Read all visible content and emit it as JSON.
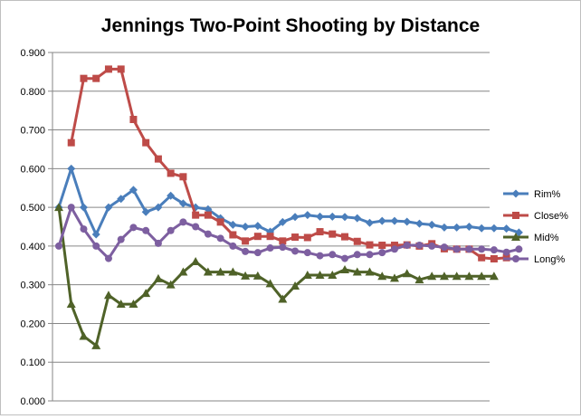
{
  "chart_data": {
    "type": "line",
    "title": "Jennings Two-Point Shooting by Distance",
    "xlabel": "",
    "ylabel": "",
    "ylim": [
      0,
      0.9
    ],
    "yticks": [
      "0.000",
      "0.100",
      "0.200",
      "0.300",
      "0.400",
      "0.500",
      "0.600",
      "0.700",
      "0.800",
      "0.900"
    ],
    "grid": true,
    "legend_position": "right",
    "series": [
      {
        "name": "Rim%",
        "color": "#4a7ebb",
        "marker": "diamond",
        "values": [
          0.5,
          0.6,
          0.5,
          0.43,
          0.5,
          0.522,
          0.545,
          0.488,
          0.5,
          0.53,
          0.51,
          0.5,
          0.495,
          0.472,
          0.455,
          0.45,
          0.452,
          0.437,
          0.462,
          0.475,
          0.48,
          0.476,
          0.476,
          0.475,
          0.472,
          0.46,
          0.465,
          0.465,
          0.463,
          0.458,
          0.455,
          0.448,
          0.448,
          0.45,
          0.446,
          0.446,
          0.445,
          0.435
        ]
      },
      {
        "name": "Close%",
        "color": "#be4b48",
        "marker": "square",
        "values": [
          null,
          0.667,
          0.833,
          0.833,
          0.857,
          0.857,
          0.727,
          0.667,
          0.625,
          0.588,
          0.579,
          0.48,
          0.48,
          0.462,
          0.429,
          0.413,
          0.425,
          0.425,
          0.413,
          0.423,
          0.422,
          0.437,
          0.431,
          0.424,
          0.412,
          0.403,
          0.402,
          0.402,
          0.403,
          0.4,
          0.406,
          0.393,
          0.392,
          0.392,
          0.37,
          0.367,
          0.37
        ]
      },
      {
        "name": "Mid%",
        "color": "#4f6228",
        "marker": "triangle",
        "values": [
          0.5,
          0.25,
          0.167,
          0.143,
          0.273,
          0.25,
          0.25,
          0.278,
          0.316,
          0.3,
          0.333,
          0.36,
          0.333,
          0.333,
          0.333,
          0.323,
          0.323,
          0.303,
          0.263,
          0.297,
          0.325,
          0.325,
          0.325,
          0.339,
          0.333,
          0.333,
          0.322,
          0.317,
          0.329,
          0.313,
          0.322,
          0.322,
          0.322,
          0.322,
          0.322,
          0.322
        ]
      },
      {
        "name": "Long%",
        "color": "#7d5fa0",
        "marker": "circle",
        "values": [
          0.4,
          0.5,
          0.444,
          0.4,
          0.368,
          0.417,
          0.448,
          0.44,
          0.407,
          0.44,
          0.462,
          0.45,
          0.431,
          0.42,
          0.4,
          0.386,
          0.383,
          0.395,
          0.397,
          0.387,
          0.383,
          0.375,
          0.378,
          0.368,
          0.378,
          0.378,
          0.383,
          0.392,
          0.402,
          0.402,
          0.4,
          0.397,
          0.392,
          0.392,
          0.392,
          0.39,
          0.384,
          0.392
        ]
      }
    ]
  }
}
